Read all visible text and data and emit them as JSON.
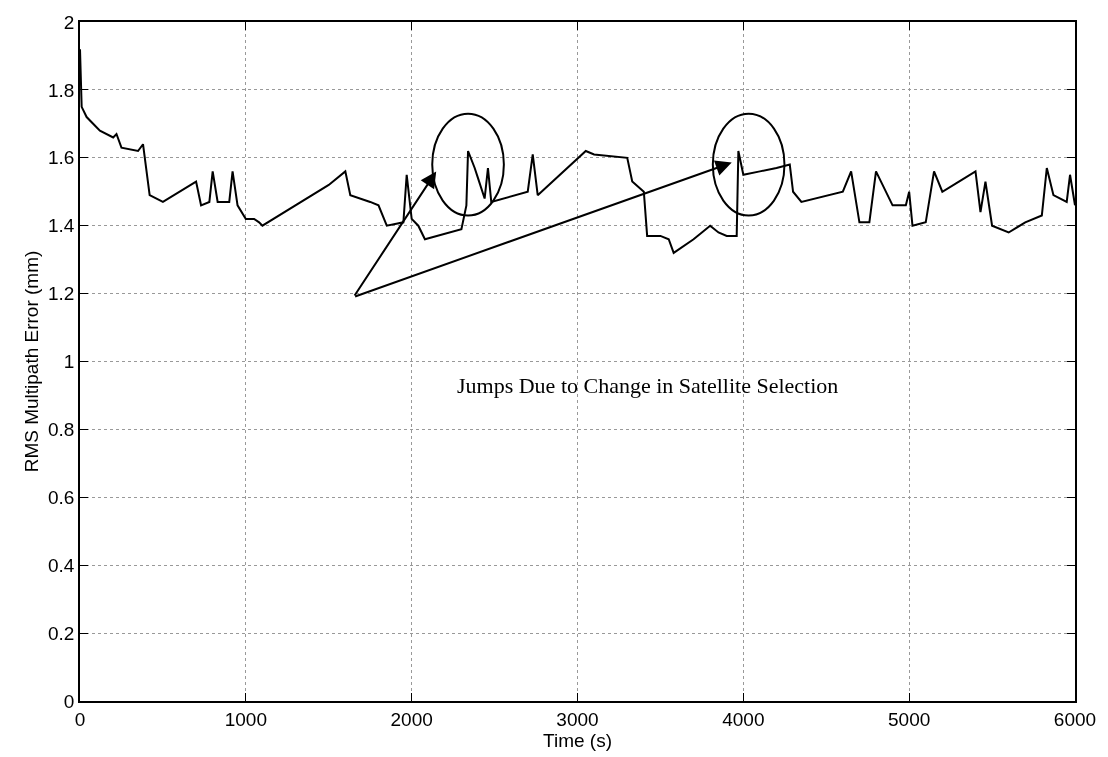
{
  "chart_data": {
    "type": "line",
    "xlabel": "Time (s)",
    "ylabel": "RMS Multipath Error (mm)",
    "x": [
      0,
      10,
      40,
      120,
      200,
      220,
      250,
      350,
      380,
      420,
      500,
      700,
      730,
      780,
      800,
      830,
      900,
      920,
      950,
      1000,
      1050,
      1080,
      1100,
      1500,
      1600,
      1630,
      1750,
      1800,
      1850,
      1950,
      1970,
      2000,
      2040,
      2080,
      2300,
      2330,
      2340,
      2380,
      2400,
      2440,
      2460,
      2480,
      2700,
      2730,
      2760,
      3050,
      3100,
      3300,
      3330,
      3400,
      3420,
      3500,
      3550,
      3580,
      3700,
      3800,
      3850,
      3900,
      3960,
      3970,
      4000,
      4100,
      4200,
      4280,
      4300,
      4350,
      4600,
      4650,
      4700,
      4760,
      4800,
      4900,
      4980,
      5000,
      5020,
      5100,
      5150,
      5200,
      5300,
      5400,
      5430,
      5460,
      5500,
      5600,
      5700,
      5800,
      5830,
      5870,
      5950,
      5970,
      6000
    ],
    "series": [
      {
        "color": "#000000",
        "values": [
          1.92,
          1.75,
          1.72,
          1.68,
          1.66,
          1.67,
          1.63,
          1.62,
          1.64,
          1.49,
          1.47,
          1.53,
          1.46,
          1.47,
          1.56,
          1.47,
          1.47,
          1.56,
          1.46,
          1.42,
          1.42,
          1.41,
          1.4,
          1.52,
          1.56,
          1.49,
          1.47,
          1.46,
          1.4,
          1.41,
          1.55,
          1.42,
          1.4,
          1.36,
          1.39,
          1.46,
          1.62,
          1.57,
          1.54,
          1.48,
          1.57,
          1.47,
          1.5,
          1.61,
          1.49,
          1.62,
          1.61,
          1.6,
          1.53,
          1.5,
          1.37,
          1.37,
          1.36,
          1.32,
          1.36,
          1.4,
          1.38,
          1.37,
          1.37,
          1.62,
          1.55,
          1.56,
          1.57,
          1.58,
          1.5,
          1.47,
          1.5,
          1.56,
          1.41,
          1.41,
          1.56,
          1.46,
          1.46,
          1.5,
          1.4,
          1.41,
          1.56,
          1.5,
          1.53,
          1.56,
          1.44,
          1.53,
          1.4,
          1.38,
          1.41,
          1.43,
          1.57,
          1.49,
          1.47,
          1.55,
          1.46
        ]
      }
    ],
    "xlim": [
      0,
      6000
    ],
    "xticks": [
      0,
      1000,
      2000,
      3000,
      4000,
      5000,
      6000
    ],
    "ylim": [
      0,
      2
    ],
    "yticks": [
      0,
      0.2,
      0.4,
      0.6,
      0.8,
      1,
      1.2,
      1.4,
      1.6,
      1.8,
      2
    ],
    "grid": true,
    "annotations": [
      "Jumps Due to Change in Satellite Selection"
    ]
  }
}
